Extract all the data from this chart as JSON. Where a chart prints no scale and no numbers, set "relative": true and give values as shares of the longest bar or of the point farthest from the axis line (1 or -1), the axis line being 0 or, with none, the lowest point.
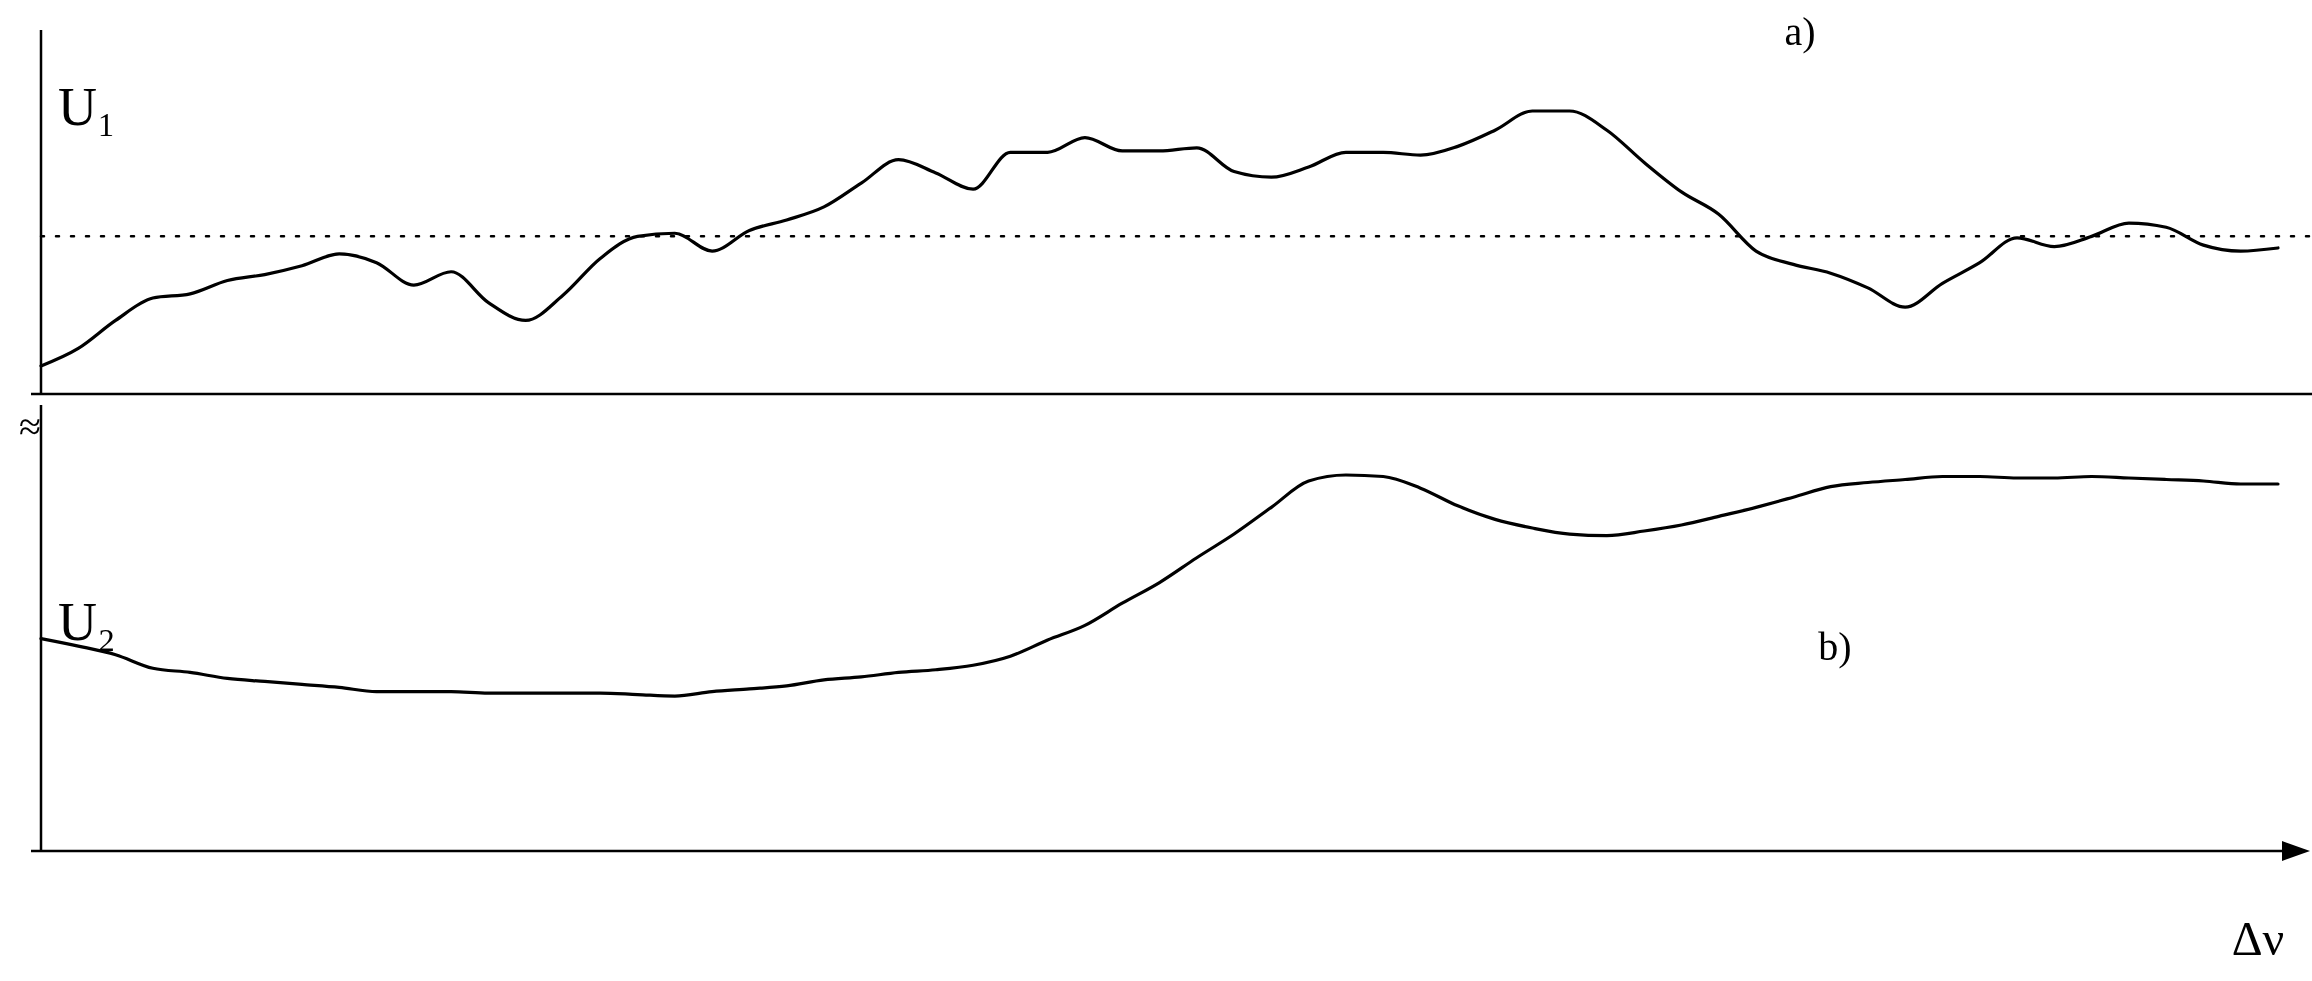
{
  "chart_data": [
    {
      "type": "line",
      "ylabel": "U₁",
      "annotations": [
        "a)"
      ],
      "relative": true,
      "categories": [
        null,
        null,
        null,
        null,
        null,
        null,
        null,
        null,
        null,
        null,
        null,
        null,
        null,
        null,
        null,
        null,
        null,
        null,
        null,
        null,
        null,
        null,
        null,
        null,
        null,
        null,
        null,
        null,
        null,
        null,
        null,
        null,
        null,
        null,
        null,
        null,
        null,
        null,
        null,
        null,
        null,
        null,
        null,
        null,
        null,
        null,
        null,
        null,
        null,
        null,
        null,
        null,
        null,
        null,
        null,
        null,
        null,
        null,
        null,
        null,
        null
      ],
      "series": [
        {
          "color": "#000000",
          "values": [
            0.099,
            0.161,
            0.26,
            0.339,
            0.354,
            0.401,
            0.422,
            0.453,
            0.495,
            0.464,
            0.385,
            0.432,
            0.323,
            0.26,
            0.349,
            0.479,
            0.557,
            0.568,
            0.505,
            0.578,
            0.615,
            0.661,
            0.745,
            0.828,
            0.781,
            0.724,
            0.854,
            0.854,
            0.906,
            0.859,
            0.859,
            0.87,
            0.786,
            0.766,
            0.802,
            0.854,
            0.854,
            0.844,
            0.875,
            0.932,
            1,
            1,
            0.932,
            0.818,
            0.714,
            0.635,
            0.505,
            0.458,
            0.427,
            0.375,
            0.307,
            0.391,
            0.464,
            0.552,
            0.521,
            0.557,
            0.604,
            0.589,
            0.526,
            0.505,
            0.516
          ]
        }
      ],
      "ref_lines": [
        {
          "axis": "y",
          "value": 0.557,
          "line_style": "dotted",
          "color": "#000000"
        }
      ]
    },
    {
      "type": "line",
      "ylabel": "U₂",
      "xlabel": "Δν",
      "annotations": [
        "b)",
        "≈"
      ],
      "relative": true,
      "categories": [
        null,
        null,
        null,
        null,
        null,
        null,
        null,
        null,
        null,
        null,
        null,
        null,
        null,
        null,
        null,
        null,
        null,
        null,
        null,
        null,
        null,
        null,
        null,
        null,
        null,
        null,
        null,
        null,
        null,
        null,
        null,
        null,
        null,
        null,
        null,
        null,
        null,
        null,
        null,
        null,
        null,
        null,
        null,
        null,
        null,
        null,
        null,
        null,
        null,
        null,
        null,
        null,
        null,
        null,
        null,
        null,
        null,
        null,
        null,
        null,
        null
      ],
      "series": [
        {
          "color": "#000000",
          "values": [
            0.565,
            0.545,
            0.522,
            0.486,
            0.475,
            0.459,
            0.451,
            0.443,
            0.435,
            0.424,
            0.424,
            0.424,
            0.42,
            0.42,
            0.42,
            0.42,
            0.416,
            0.412,
            0.424,
            0.431,
            0.439,
            0.455,
            0.463,
            0.475,
            0.482,
            0.494,
            0.518,
            0.561,
            0.6,
            0.659,
            0.714,
            0.78,
            0.843,
            0.914,
            0.984,
            1,
            0.996,
            0.965,
            0.918,
            0.882,
            0.859,
            0.843,
            0.839,
            0.851,
            0.867,
            0.89,
            0.914,
            0.941,
            0.969,
            0.98,
            0.988,
            0.996,
            0.996,
            0.992,
            0.992,
            0.996,
            0.992,
            0.988,
            0.984,
            0.976,
            0.976
          ]
        }
      ]
    }
  ]
}
